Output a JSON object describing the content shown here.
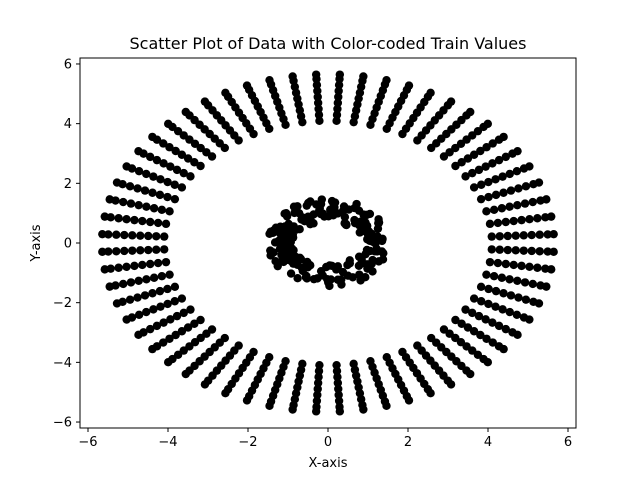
{
  "chart_data": {
    "type": "scatter",
    "title": "Scatter Plot of Data with Color-coded Train Values",
    "xlabel": "X-axis",
    "ylabel": "Y-axis",
    "xlim": [
      -6.2,
      6.2
    ],
    "ylim": [
      -6.2,
      6.2
    ],
    "xticks": [
      -6,
      -4,
      -2,
      0,
      2,
      4,
      6
    ],
    "yticks": [
      -6,
      -4,
      -2,
      0,
      2,
      4,
      6
    ],
    "xtick_labels": [
      "−6",
      "−4",
      "−2",
      "0",
      "2",
      "4",
      "6"
    ],
    "ytick_labels": [
      "−6",
      "−4",
      "−2",
      "0",
      "2",
      "4",
      "6"
    ],
    "grid": false,
    "legend": "none",
    "marker_color": "#000000",
    "series": [
      {
        "description_of_structure": "outer ring: 60 radial spokes, each with points at radii 4.1 to 5.65",
        "ring": "outer",
        "angles_count": 60,
        "radii": [
          4.1,
          4.3,
          4.5,
          4.7,
          4.9,
          5.1,
          5.3,
          5.5,
          5.65
        ]
      },
      {
        "ring": "inner",
        "center": [
          0,
          0
        ],
        "x_radius_range": [
          0.9,
          1.5
        ],
        "y_radius_range": [
          0.7,
          1.5
        ],
        "points_count": 220
      }
    ]
  }
}
